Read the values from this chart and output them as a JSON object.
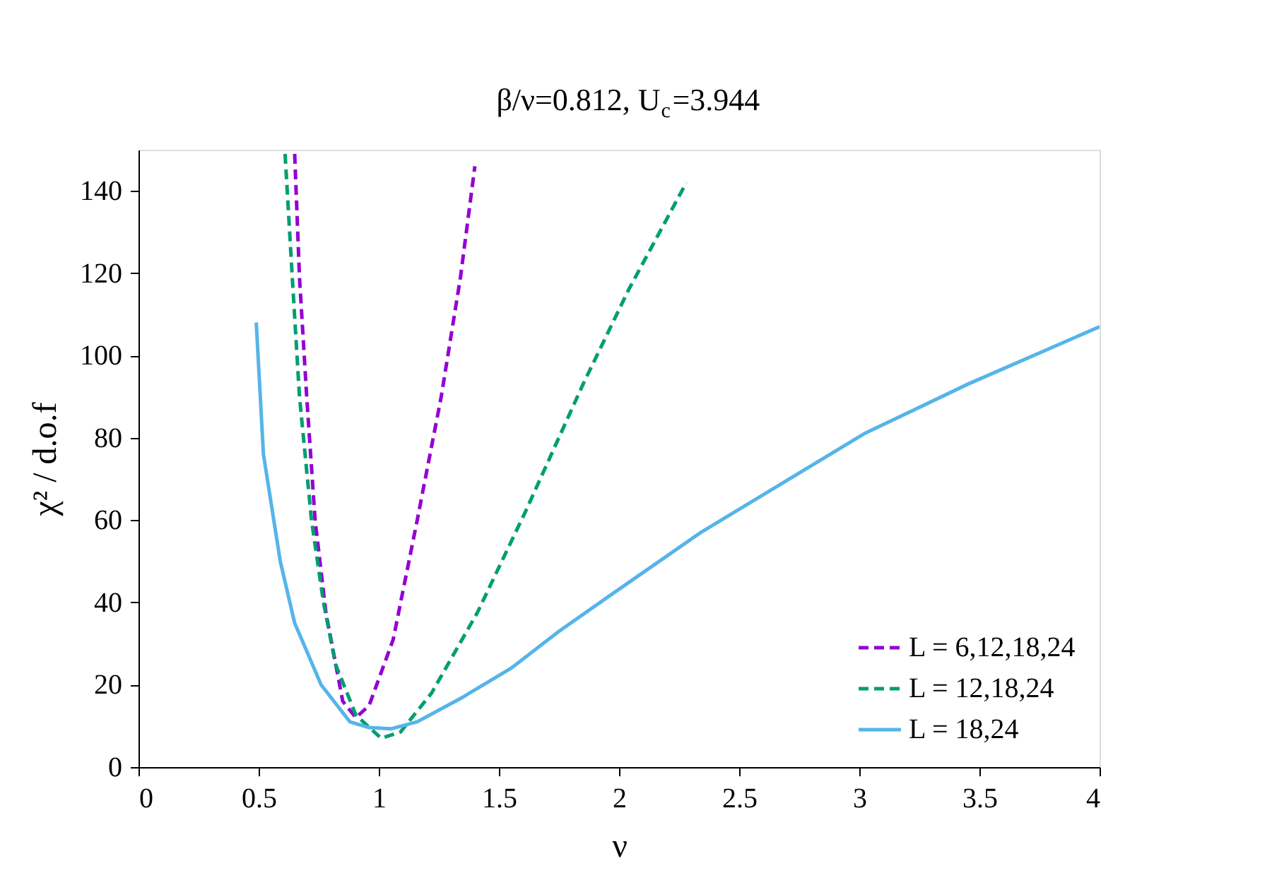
{
  "chart_data": {
    "type": "line",
    "title": "β/ν=0.812, U$_{c}$=3.944",
    "xlabel": "ν",
    "ylabel": "χ² / d.o.f",
    "xlim": [
      0,
      4
    ],
    "xticks": [
      0,
      0.5,
      1,
      1.5,
      2,
      2.5,
      3,
      3.5,
      4
    ],
    "ylim": [
      0,
      150
    ],
    "yticks": [
      0,
      20,
      40,
      60,
      80,
      100,
      120,
      140
    ],
    "grid": false,
    "legend": "bottom right",
    "marker": "none",
    "series": [
      {
        "name": "L = 6,12,18,24",
        "color": "#9400d3",
        "line_style": "dashed",
        "x": [
          0.65,
          0.67,
          0.7,
          0.735,
          0.78,
          0.85,
          0.905,
          0.96,
          1.06,
          1.16,
          1.26,
          1.34,
          1.4
        ],
        "values": [
          149,
          119,
          90,
          60,
          37.5,
          16,
          12,
          15,
          31,
          60,
          90,
          119,
          146
        ]
      },
      {
        "name": "L = 12,18,24",
        "color": "#009e73",
        "line_style": "dashed",
        "x": [
          0.61,
          0.64,
          0.67,
          0.72,
          0.77,
          0.82,
          0.905,
          1.01,
          1.09,
          1.22,
          1.41,
          1.61,
          1.85,
          2.04,
          2.28
        ],
        "values": [
          149,
          119,
          90,
          60,
          40,
          25,
          12.6,
          7,
          8.5,
          18,
          37.5,
          62,
          93,
          116,
          142
        ]
      },
      {
        "name": "L = 18,24",
        "color": "#56b4e9",
        "line_style": "solid",
        "x": [
          0.49,
          0.52,
          0.59,
          0.65,
          0.76,
          0.88,
          0.96,
          1.05,
          1.16,
          1.35,
          1.55,
          1.75,
          1.96,
          2.34,
          3.02,
          3.45,
          4.0
        ],
        "values": [
          108,
          76,
          50,
          35,
          20,
          11,
          9.6,
          9.3,
          11,
          17,
          24,
          33,
          41.6,
          57,
          81,
          93,
          107
        ]
      }
    ]
  }
}
